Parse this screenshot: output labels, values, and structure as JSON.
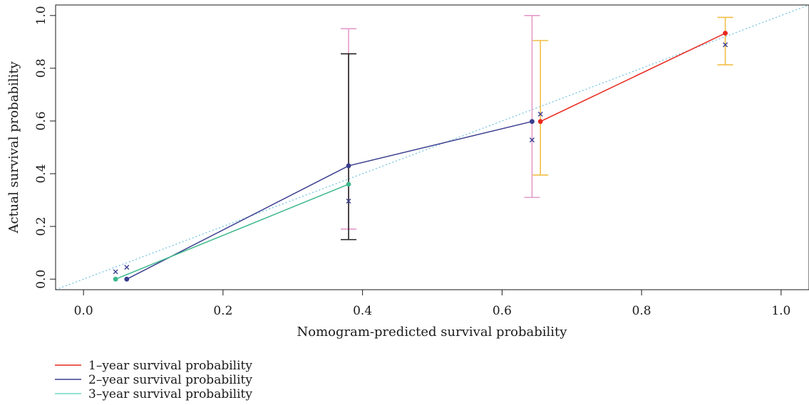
{
  "chart_data": {
    "type": "line",
    "title": "",
    "xlabel": "Nomogram-predicted survival probability",
    "ylabel": "Actual survival probability",
    "xlim": [
      -0.04,
      1.04
    ],
    "ylim": [
      -0.04,
      1.04
    ],
    "x_ticks": [
      0.0,
      0.2,
      0.4,
      0.6,
      0.8,
      1.0
    ],
    "y_ticks": [
      0.0,
      0.2,
      0.4,
      0.6,
      0.8,
      1.0
    ],
    "tick_labels": [
      "0.0",
      "0.2",
      "0.4",
      "0.6",
      "0.8",
      "1.0"
    ],
    "grid": false,
    "legend_position": "bottom-left",
    "reference_line": {
      "kind": "diagonal",
      "color": "#7ec8e3",
      "style": "dotted"
    },
    "series": [
      {
        "name": "1–year survival probability",
        "color": "#e8281e",
        "errorbar_color": "#f2be46",
        "points": [
          {
            "x": 0.655,
            "y": 0.598,
            "ylo": 0.395,
            "yhi": 0.905,
            "x_mark": 0.626
          },
          {
            "x": 0.92,
            "y": 0.933,
            "ylo": 0.813,
            "yhi": 0.993,
            "x_mark": 0.889
          }
        ]
      },
      {
        "name": "2–year survival probability",
        "color": "#3a3d8f",
        "errorbar_color": "#e59bc8",
        "points": [
          {
            "x": 0.062,
            "y": 0.0,
            "ylo": 0.0,
            "yhi": 0.0,
            "x_mark": 0.045
          },
          {
            "x": 0.38,
            "y": 0.43,
            "ylo": 0.19,
            "yhi": 0.95,
            "x_mark": 0.296
          },
          {
            "x": 0.643,
            "y": 0.598,
            "ylo": 0.31,
            "yhi": 1.0,
            "x_mark": 0.528
          }
        ]
      },
      {
        "name": "3–year survival probability",
        "color": "#3db88c",
        "errorbar_color": "#222222",
        "points": [
          {
            "x": 0.046,
            "y": 0.0,
            "ylo": 0.0,
            "yhi": 0.0,
            "x_mark": 0.028
          },
          {
            "x": 0.38,
            "y": 0.36,
            "ylo": 0.15,
            "yhi": 0.855,
            "x_mark": null
          }
        ]
      }
    ],
    "legend": [
      {
        "label": "1–year survival probability",
        "color": "#e8281e"
      },
      {
        "label": "2–year survival probability",
        "color": "#3a3d8f"
      },
      {
        "label": "3–year survival probability",
        "color": "#6fd8c6"
      }
    ]
  }
}
